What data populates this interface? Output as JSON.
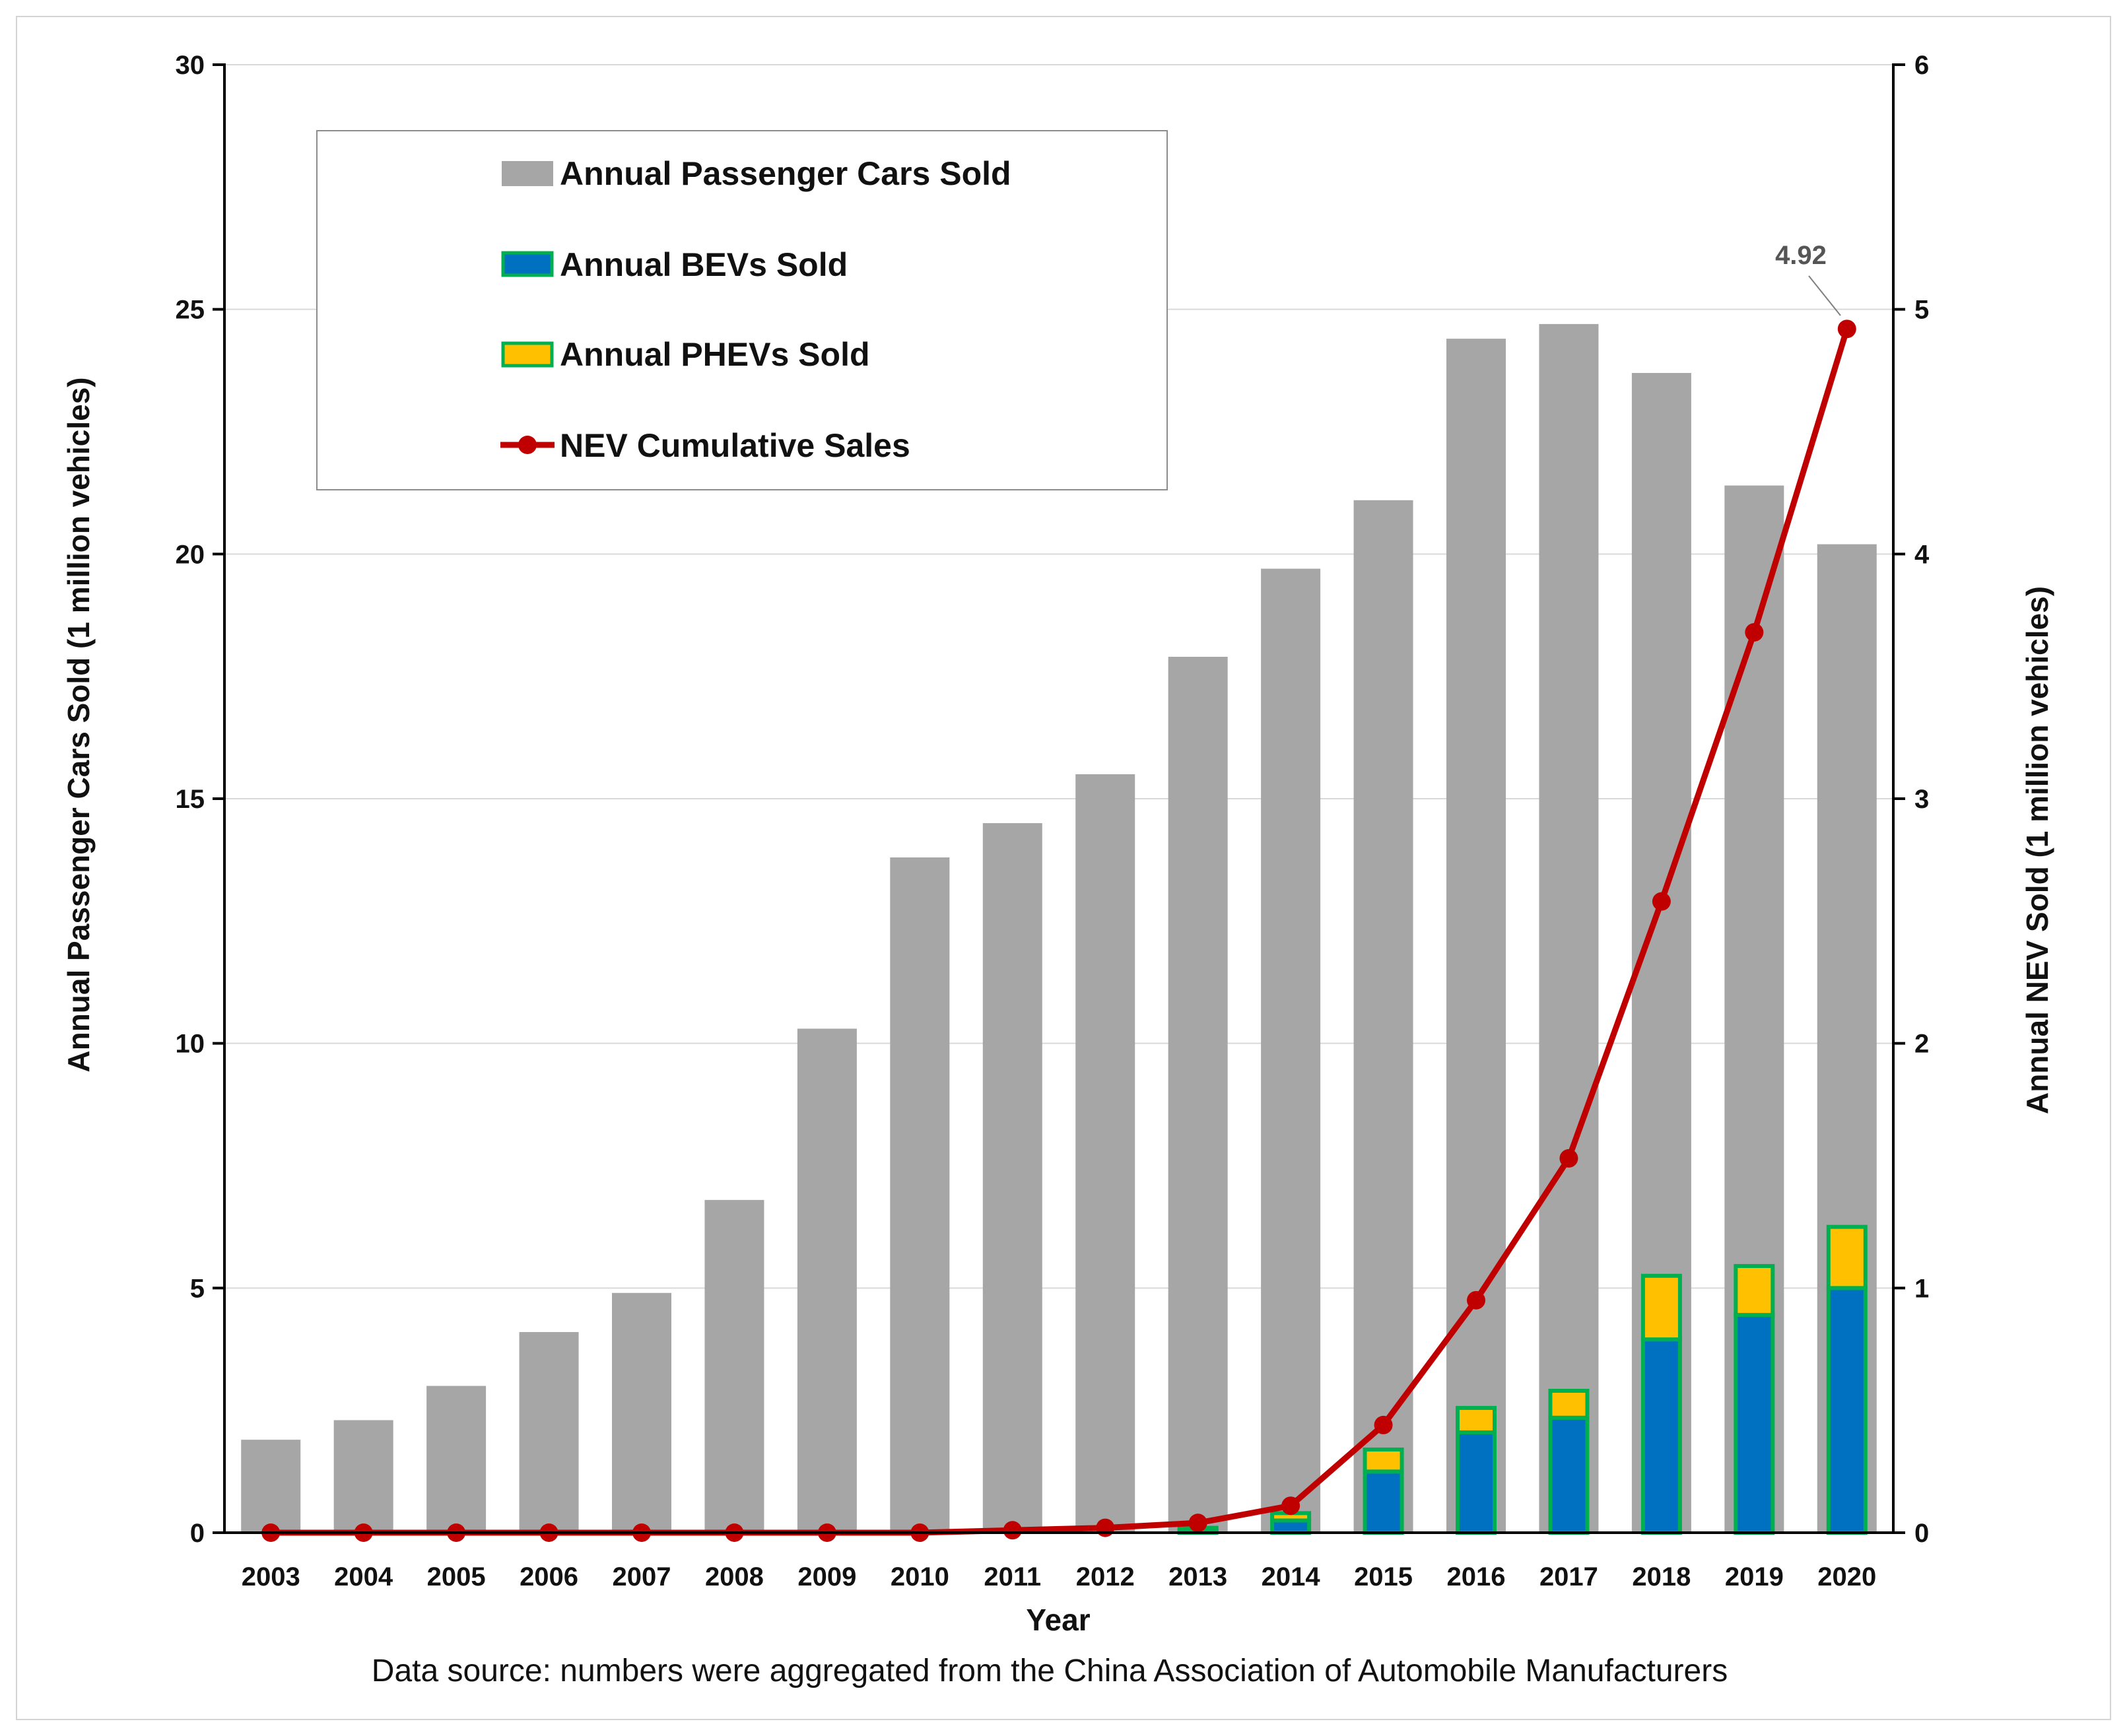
{
  "chart_data": {
    "type": "bar",
    "categories": [
      "2003",
      "2004",
      "2005",
      "2006",
      "2007",
      "2008",
      "2009",
      "2010",
      "2011",
      "2012",
      "2013",
      "2014",
      "2015",
      "2016",
      "2017",
      "2018",
      "2019",
      "2020"
    ],
    "series": [
      {
        "name": "Annual Passenger Cars Sold",
        "axis": "left",
        "kind": "bar",
        "color": "#a6a6a6",
        "values": [
          1.9,
          2.3,
          3.0,
          4.1,
          4.9,
          6.8,
          10.3,
          13.8,
          14.5,
          15.5,
          17.9,
          19.7,
          21.1,
          24.4,
          24.7,
          23.7,
          21.4,
          20.2
        ]
      },
      {
        "name": "Annual BEVs Sold",
        "axis": "right",
        "kind": "stacked-bar",
        "color": "#0070c0",
        "values": [
          0,
          0,
          0,
          0,
          0,
          0,
          0,
          0,
          0,
          0,
          0.01,
          0.05,
          0.25,
          0.41,
          0.47,
          0.79,
          0.89,
          1.0
        ]
      },
      {
        "name": "Annual PHEVs Sold",
        "axis": "right",
        "kind": "stacked-bar",
        "color": "#ffc000",
        "values": [
          0,
          0,
          0,
          0,
          0,
          0,
          0,
          0,
          0,
          0,
          0.01,
          0.03,
          0.09,
          0.1,
          0.11,
          0.26,
          0.2,
          0.25
        ]
      },
      {
        "name": "NEV Cumulative Sales",
        "axis": "right",
        "kind": "line",
        "color": "#c00000",
        "values": [
          0,
          0,
          0,
          0,
          0,
          0,
          0,
          0,
          0.01,
          0.02,
          0.04,
          0.11,
          0.44,
          0.95,
          1.53,
          2.58,
          3.68,
          4.92
        ]
      }
    ],
    "left_axis": {
      "title": "Annual Passenger Cars Sold (1 million vehicles)",
      "range": [
        0,
        30
      ],
      "ticks": [
        "0",
        "5",
        "10",
        "15",
        "20",
        "25",
        "30"
      ]
    },
    "right_axis": {
      "title": "Annual NEV Sold (1 million vehicles)",
      "range": [
        0,
        6
      ],
      "ticks": [
        "0",
        "1",
        "2",
        "3",
        "4",
        "5",
        "6"
      ]
    },
    "xlabel": "Year",
    "annotation": {
      "label": "4.92",
      "category": "2020",
      "series": "NEV Cumulative Sales"
    },
    "caption": "Data source: numbers were aggregated from the China Association of Automobile Manufacturers",
    "legend_position": "top-left",
    "gridlines": true,
    "bev_outline_color": "#00b050"
  }
}
